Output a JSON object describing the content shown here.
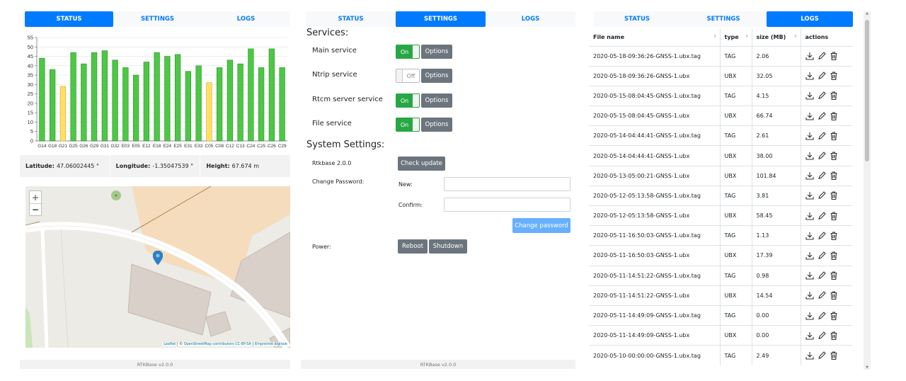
{
  "tabs": [
    "STATUS",
    "SETTINGS",
    "LOGS"
  ],
  "footer": "RTKBase v2.0.0",
  "status": {
    "latitude_label": "Latitude:",
    "latitude": "47.06002445 °",
    "longitude_label": "Longitude:",
    "longitude": "-1.35047539 °",
    "height_label": "Height:",
    "height": "67.674 m",
    "map": {
      "zoom_in": "+",
      "zoom_out": "−",
      "attribution_leaflet": "Leaflet",
      "attribution_sep1": " | © ",
      "attribution_osm": "OpenStreetMap contributors CC-BY-SA",
      "attribution_sep2": " | ",
      "attribution_ign": "Empreinte digitale"
    }
  },
  "chart_data": {
    "type": "bar",
    "categories": [
      "G14",
      "G18",
      "G21",
      "G25",
      "G26",
      "G29",
      "G31",
      "G32",
      "E03",
      "E05",
      "E12",
      "E18",
      "E24",
      "E25",
      "E31",
      "E33",
      "C05",
      "C08",
      "C12",
      "C13",
      "C24",
      "C25",
      "C26",
      "C29"
    ],
    "values": [
      44,
      38,
      29,
      47,
      41,
      47,
      48,
      43,
      39,
      35,
      42,
      47,
      45,
      46,
      37,
      40,
      31,
      39,
      43,
      41,
      49,
      39,
      49,
      39
    ],
    "used": [
      true,
      true,
      false,
      true,
      true,
      true,
      true,
      true,
      true,
      true,
      true,
      true,
      true,
      true,
      true,
      true,
      false,
      true,
      true,
      true,
      true,
      true,
      true,
      true
    ],
    "ylim": [
      0,
      55
    ],
    "yticks": [
      0,
      5,
      10,
      15,
      20,
      25,
      30,
      35,
      40,
      45,
      50,
      55
    ],
    "colors": {
      "used": "#4cc844",
      "unused": "#ffe066",
      "used_border": "#2e8b2e",
      "unused_border": "#d4a82e"
    },
    "grid": true
  },
  "settings": {
    "services_title": "Services:",
    "services": [
      {
        "name": "Main service",
        "state": "On",
        "on": true,
        "options": "Options"
      },
      {
        "name": "Ntrip service",
        "state": "Off",
        "on": false,
        "options": "Options"
      },
      {
        "name": "Rtcm server service",
        "state": "On",
        "on": true,
        "options": "Options"
      },
      {
        "name": "File service",
        "state": "On",
        "on": true,
        "options": "Options"
      }
    ],
    "system_title": "System Settings:",
    "version": "Rtkbase 2.0.0",
    "check_update": "Check update",
    "change_password_label": "Change Password:",
    "new_label": "New:",
    "confirm_label": "Confirm:",
    "change_password_btn": "Change password",
    "power_label": "Power:",
    "reboot": "Reboot",
    "shutdown": "Shutdown"
  },
  "logs": {
    "headers": {
      "name": "File name",
      "type": "type",
      "size": "size (MB)",
      "actions": "actions"
    },
    "rows": [
      {
        "name": "2020-05-18-09:36:26-GNSS-1.ubx.tag",
        "type": "TAG",
        "size": "2.06"
      },
      {
        "name": "2020-05-18-09:36:26-GNSS-1.ubx",
        "type": "UBX",
        "size": "32.05"
      },
      {
        "name": "2020-05-15-08:04:45-GNSS-1.ubx.tag",
        "type": "TAG",
        "size": "4.15"
      },
      {
        "name": "2020-05-15-08:04:45-GNSS-1.ubx",
        "type": "UBX",
        "size": "66.74"
      },
      {
        "name": "2020-05-14-04:44:41-GNSS-1.ubx.tag",
        "type": "TAG",
        "size": "2.61"
      },
      {
        "name": "2020-05-14-04:44:41-GNSS-1.ubx",
        "type": "UBX",
        "size": "38.00"
      },
      {
        "name": "2020-05-13-05:00:21-GNSS-1.ubx",
        "type": "UBX",
        "size": "101.84"
      },
      {
        "name": "2020-05-12-05:13:58-GNSS-1.ubx.tag",
        "type": "TAG",
        "size": "3.81"
      },
      {
        "name": "2020-05-12-05:13:58-GNSS-1.ubx",
        "type": "UBX",
        "size": "58.45"
      },
      {
        "name": "2020-05-11-16:50:03-GNSS-1.ubx.tag",
        "type": "TAG",
        "size": "1.13"
      },
      {
        "name": "2020-05-11-16:50:03-GNSS-1.ubx",
        "type": "UBX",
        "size": "17.39"
      },
      {
        "name": "2020-05-11-14:51:22-GNSS-1.ubx.tag",
        "type": "TAG",
        "size": "0.98"
      },
      {
        "name": "2020-05-11-14:51:22-GNSS-1.ubx",
        "type": "UBX",
        "size": "14.54"
      },
      {
        "name": "2020-05-11-14:49:09-GNSS-1.ubx.tag",
        "type": "TAG",
        "size": "0.00"
      },
      {
        "name": "2020-05-11-14:49:09-GNSS-1.ubx",
        "type": "UBX",
        "size": "0.00"
      },
      {
        "name": "2020-05-10-00:00:00-GNSS-1.ubx.tag",
        "type": "TAG",
        "size": "2.49"
      }
    ],
    "action_icons": [
      "download-icon",
      "pencil-icon",
      "trash-icon"
    ]
  }
}
